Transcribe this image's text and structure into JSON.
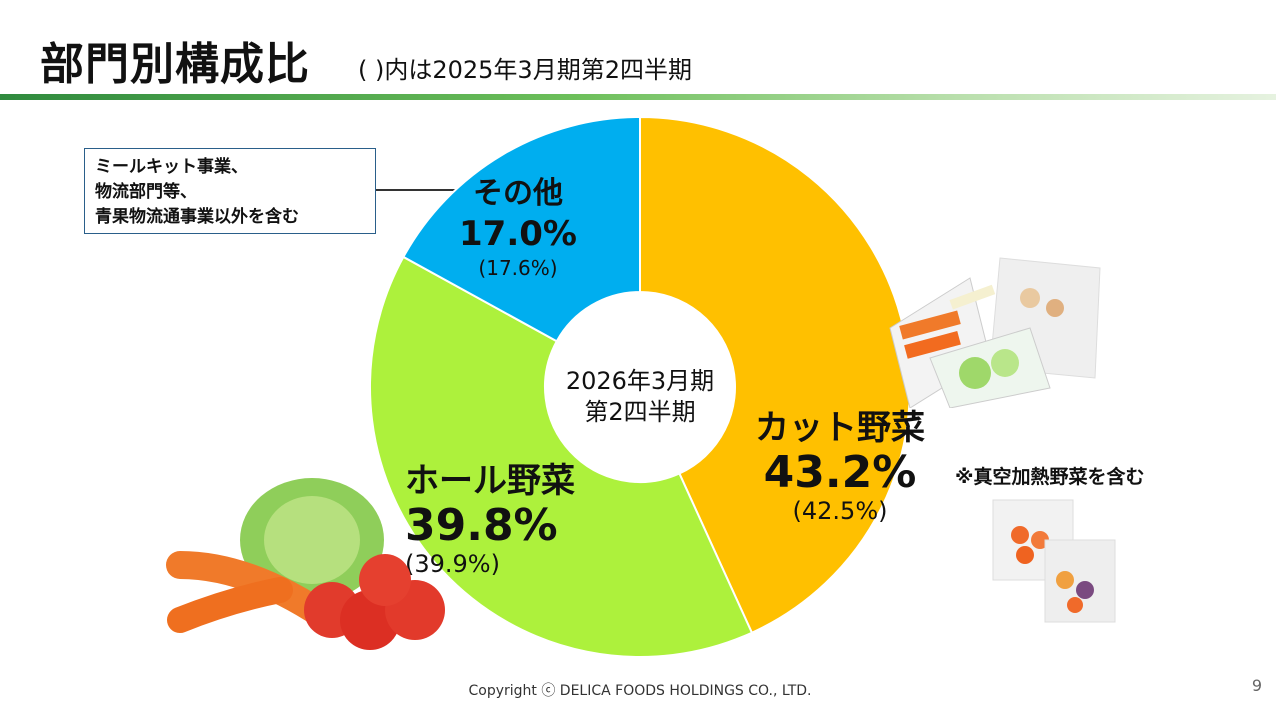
{
  "header": {
    "title": "部門別構成比",
    "subtitle": "( )内は2025年3月期第2四半期"
  },
  "note": {
    "lines": [
      "ミールキット事業、",
      "物流部門等、",
      "青果物流通事業以外を含む"
    ]
  },
  "center": {
    "line1": "2026年3月期",
    "line2": "第2四半期"
  },
  "footnote": "※真空加熱野菜を含む",
  "footer": {
    "copyright": "Copyright ⓒ DELICA FOODS HOLDINGS CO., LTD.",
    "page": "9"
  },
  "chart_data": {
    "type": "pie",
    "donut": true,
    "categories": [
      "カット野菜",
      "ホール野菜",
      "その他"
    ],
    "values": [
      43.2,
      39.8,
      17.0
    ],
    "value_labels": [
      "43.2%",
      "39.8%",
      "17.0%"
    ],
    "previous_labels": [
      "(42.5%)",
      "(39.9%)",
      "(17.6%)"
    ],
    "colors": [
      "#FFC000",
      "#ADF13C",
      "#00AEEF"
    ],
    "start": "12 o'clock",
    "direction": "clockwise"
  }
}
